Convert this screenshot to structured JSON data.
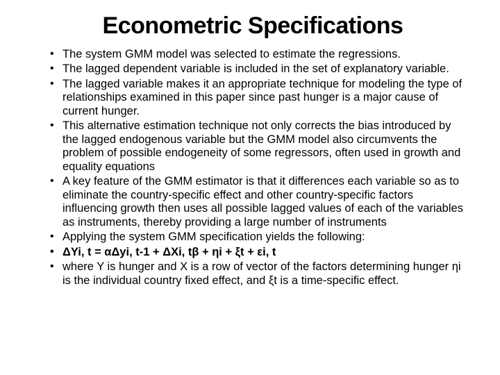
{
  "title": "Econometric Specifications",
  "bullets": [
    "The system GMM model was selected to estimate the regressions.",
    "The lagged dependent variable is included in the set of explanatory variable.",
    "The lagged variable makes it an appropriate technique for modeling the type of relationships examined in this paper since past hunger is a major cause of current hunger.",
    "This alternative estimation technique not only corrects the bias introduced by the lagged endogenous variable but the GMM model also circumvents the problem of possible endogeneity of some regressors, often used in growth and equality equations",
    "A key feature of the GMM estimator is that it differences each variable so as to eliminate the country-specific effect and other country-specific factors influencing growth then uses all possible lagged values of each of the variables as instruments, thereby providing a large number of instruments",
    "Applying the system GMM specification yields the following:",
    "ΔYi, t = αΔyi, t-1 + ΔXi, tβ  + ηi   +  ξt +  εi, t",
    "where Y is hunger and X is a row of vector of the factors determining hunger ηi is the individual country fixed effect, and ξt is a time-specific effect."
  ],
  "equation_index": 6,
  "title_fontsize": 34,
  "body_fontsize": 16.5,
  "text_color": "#000000",
  "background_color": "#ffffff"
}
